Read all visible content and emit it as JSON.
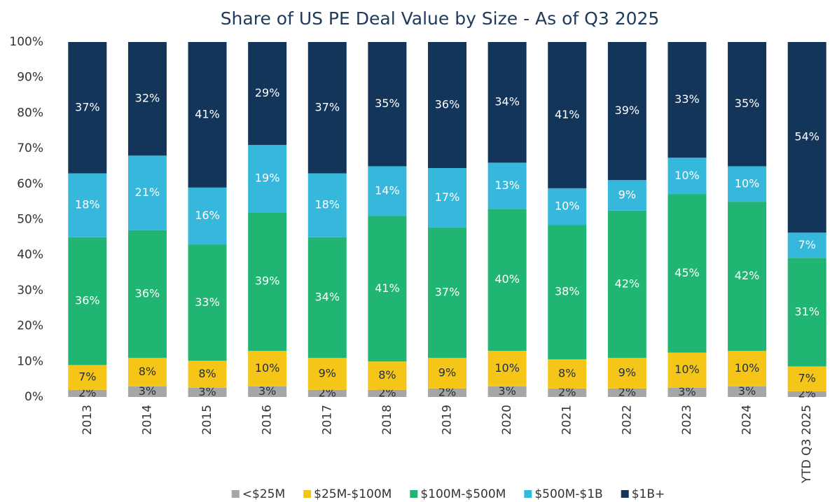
{
  "chart_data": {
    "type": "stacked_bar",
    "title": "Share of US PE Deal Value by Size - As of Q3 2025",
    "categories": [
      "2013",
      "2014",
      "2015",
      "2016",
      "2017",
      "2018",
      "2019",
      "2020",
      "2021",
      "2022",
      "2023",
      "2024",
      "YTD Q3 2025"
    ],
    "ylim": [
      0,
      100
    ],
    "yticks": [
      {
        "value": 0,
        "label": "0%"
      },
      {
        "value": 10,
        "label": "10%"
      },
      {
        "value": 20,
        "label": "20%"
      },
      {
        "value": 30,
        "label": "30%"
      },
      {
        "value": 40,
        "label": "40%"
      },
      {
        "value": 50,
        "label": "50%"
      },
      {
        "value": 60,
        "label": "60%"
      },
      {
        "value": 70,
        "label": "70%"
      },
      {
        "value": 80,
        "label": "80%"
      },
      {
        "value": 90,
        "label": "90%"
      },
      {
        "value": 100,
        "label": "100%"
      }
    ],
    "series": [
      {
        "name": "<$25M",
        "color": "#a6a6a6",
        "values": [
          2,
          3,
          2.6,
          3,
          2,
          2,
          2.4,
          3,
          2.4,
          2.4,
          2.6,
          3,
          1.6
        ],
        "value_labels": [
          "2%",
          "3%",
          "3%",
          "3%",
          "2%",
          "2%",
          "2%",
          "3%",
          "2%",
          "2%",
          "3%",
          "3%",
          "2%"
        ]
      },
      {
        "name": "$25M-$100M",
        "color": "#f5c518",
        "values": [
          7,
          8,
          7.6,
          10,
          9,
          8,
          8.6,
          10,
          8.2,
          8.6,
          9.9,
          10,
          7.0
        ],
        "value_labels": [
          "7%",
          "8%",
          "8%",
          "10%",
          "9%",
          "8%",
          "9%",
          "10%",
          "8%",
          "9%",
          "10%",
          "10%",
          "7%"
        ]
      },
      {
        "name": "$100M-$500M",
        "color": "#21b573",
        "values": [
          36,
          36,
          32.7,
          39,
          34,
          41,
          36.8,
          40,
          37.9,
          41.5,
          44.6,
          42,
          30.6
        ],
        "value_labels": [
          "36%",
          "36%",
          "33%",
          "39%",
          "34%",
          "41%",
          "37%",
          "40%",
          "38%",
          "42%",
          "45%",
          "42%",
          "31%"
        ]
      },
      {
        "name": "$500M-$1B",
        "color": "#35b8dc",
        "values": [
          18,
          21,
          16.1,
          19,
          18,
          14,
          16.7,
          13,
          10.3,
          8.6,
          10.3,
          10,
          7.1
        ],
        "value_labels": [
          "18%",
          "21%",
          "16%",
          "19%",
          "18%",
          "14%",
          "17%",
          "13%",
          "10%",
          "9%",
          "10%",
          "10%",
          "7%"
        ]
      },
      {
        "name": "$1B+",
        "color": "#14355a",
        "values": [
          37,
          32,
          41.0,
          29,
          37,
          35,
          35.5,
          34,
          41.2,
          38.9,
          32.6,
          35,
          53.7
        ],
        "value_labels": [
          "37%",
          "32%",
          "41%",
          "29%",
          "37%",
          "35%",
          "36%",
          "34%",
          "41%",
          "39%",
          "33%",
          "35%",
          "54%"
        ]
      }
    ]
  }
}
